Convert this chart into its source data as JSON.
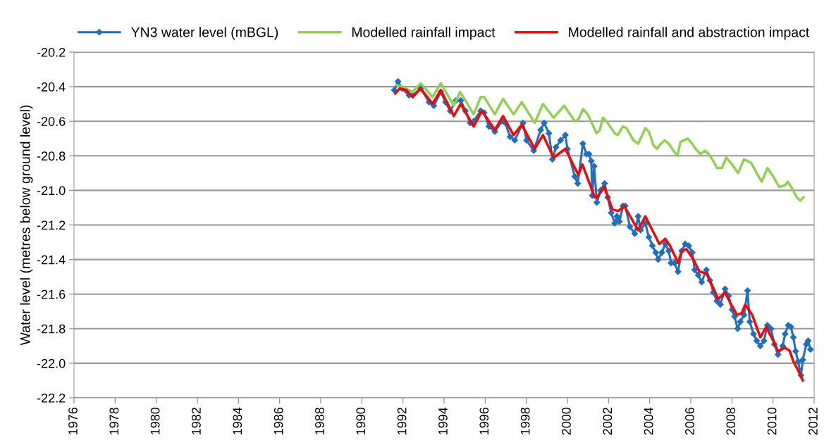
{
  "chart_data": {
    "type": "line",
    "ylabel": "Water level (metres below ground level)",
    "xlim": [
      1976,
      2012
    ],
    "xticks": [
      1976,
      1978,
      1980,
      1982,
      1984,
      1986,
      1988,
      1990,
      1992,
      1994,
      1996,
      1998,
      2000,
      2002,
      2004,
      2006,
      2008,
      2010,
      2012
    ],
    "ylim": [
      -22.2,
      -20.2
    ],
    "yticks": [
      -22.2,
      {
        "value": -22,
        "label": "-22.0"
      },
      -21.8,
      -21.6,
      -21.4,
      -21.2,
      {
        "value": -21,
        "label": "-21.0"
      },
      -20.8,
      -20.6,
      -20.4,
      -20.2
    ],
    "grid": "y",
    "legend": "top",
    "series": [
      {
        "name": "YN3 water level (mBGL)",
        "color": "#1f6fbf",
        "marker": "diamond",
        "x": [
          1991.58,
          1991.76,
          1991.95,
          1992.3,
          1992.47,
          1992.86,
          1993.27,
          1993.5,
          1993.84,
          1994.07,
          1994.3,
          1994.58,
          1994.81,
          1995.04,
          1995.27,
          1995.44,
          1995.78,
          1995.95,
          1996.18,
          1996.47,
          1996.81,
          1996.98,
          1997.21,
          1997.44,
          1997.84,
          1998.01,
          1998.36,
          1998.7,
          1998.87,
          1999.1,
          1999.27,
          1999.44,
          1999.67,
          1999.9,
          2000.0,
          2000.36,
          2000.5,
          2000.75,
          2000.93,
          2001.05,
          2001.16,
          2001.21,
          2001.3,
          2001.43,
          2001.61,
          2001.81,
          2001.96,
          2002.13,
          2002.3,
          2002.41,
          2002.53,
          2002.7,
          2002.81,
          2003.04,
          2003.27,
          2003.44,
          2003.56,
          2003.79,
          2003.96,
          2004.13,
          2004.3,
          2004.41,
          2004.59,
          2004.76,
          2004.93,
          2005.04,
          2005.21,
          2005.38,
          2005.56,
          2005.73,
          2005.9,
          2006.07,
          2006.19,
          2006.36,
          2006.53,
          2006.76,
          2006.93,
          2007.1,
          2007.27,
          2007.44,
          2007.67,
          2007.84,
          2008.01,
          2008.13,
          2008.28,
          2008.41,
          2008.59,
          2008.76,
          2008.87,
          2009.05,
          2009.21,
          2009.38,
          2009.56,
          2009.73,
          2009.9,
          2010.07,
          2010.24,
          2010.47,
          2010.59,
          2010.74,
          2010.87,
          2010.99,
          2011.1,
          2011.22,
          2011.36,
          2011.45,
          2011.62,
          2011.71,
          2011.82
        ],
        "values": [
          -20.42,
          -20.37,
          -20.41,
          -20.45,
          -20.45,
          -20.41,
          -20.49,
          -20.51,
          -20.43,
          -20.49,
          -20.54,
          -20.48,
          -20.48,
          -20.54,
          -20.61,
          -20.6,
          -20.54,
          -20.55,
          -20.63,
          -20.66,
          -20.6,
          -20.61,
          -20.69,
          -20.71,
          -20.61,
          -20.71,
          -20.77,
          -20.65,
          -20.61,
          -20.67,
          -20.82,
          -20.75,
          -20.71,
          -20.68,
          -20.76,
          -20.92,
          -20.96,
          -20.73,
          -20.79,
          -20.79,
          -20.83,
          -21.03,
          -20.86,
          -21.07,
          -21.0,
          -20.96,
          -21.04,
          -21.13,
          -21.19,
          -21.15,
          -21.18,
          -21.09,
          -21.09,
          -21.21,
          -21.25,
          -21.15,
          -21.23,
          -21.19,
          -21.27,
          -21.32,
          -21.36,
          -21.4,
          -21.36,
          -21.31,
          -21.35,
          -21.42,
          -21.42,
          -21.47,
          -21.35,
          -21.31,
          -21.32,
          -21.36,
          -21.46,
          -21.49,
          -21.53,
          -21.46,
          -21.52,
          -21.59,
          -21.64,
          -21.66,
          -21.57,
          -21.61,
          -21.69,
          -21.73,
          -21.8,
          -21.76,
          -21.72,
          -21.58,
          -21.76,
          -21.83,
          -21.87,
          -21.9,
          -21.87,
          -21.78,
          -21.8,
          -21.89,
          -21.95,
          -21.9,
          -21.83,
          -21.78,
          -21.79,
          -21.85,
          -21.93,
          -21.99,
          -22.07,
          -21.98,
          -21.89,
          -21.87,
          -21.92
        ]
      },
      {
        "name": "Modelled rainfall impact",
        "color": "#92d050",
        "marker": "none",
        "x": [
          1991.67,
          1991.95,
          1992.47,
          1992.86,
          1993.44,
          1993.84,
          1994.47,
          1994.78,
          1995.44,
          1995.78,
          1995.95,
          1996.47,
          1996.87,
          1997.38,
          1997.78,
          1998.41,
          1998.81,
          1999.33,
          1999.84,
          2000.36,
          2000.53,
          2000.76,
          2000.99,
          2001.42,
          2001.58,
          2001.73,
          2001.9,
          2002.3,
          2002.45,
          2002.7,
          2002.87,
          2003.21,
          2003.44,
          2003.79,
          2003.96,
          2004.19,
          2004.36,
          2004.47,
          2004.73,
          2004.93,
          2005.16,
          2005.35,
          2005.5,
          2005.67,
          2005.85,
          2006.07,
          2006.24,
          2006.47,
          2006.7,
          2006.87,
          2007.1,
          2007.27,
          2007.52,
          2007.73,
          2008.01,
          2008.3,
          2008.59,
          2008.93,
          2009.21,
          2009.45,
          2009.73,
          2010.01,
          2010.3,
          2010.59,
          2010.72,
          2010.93,
          2011.16,
          2011.33,
          2011.48
        ],
        "values": [
          -20.39,
          -20.4,
          -20.43,
          -20.38,
          -20.46,
          -20.38,
          -20.51,
          -20.43,
          -20.56,
          -20.46,
          -20.46,
          -20.56,
          -20.47,
          -20.56,
          -20.49,
          -20.61,
          -20.5,
          -20.58,
          -20.51,
          -20.6,
          -20.59,
          -20.53,
          -20.56,
          -20.67,
          -20.65,
          -20.58,
          -20.6,
          -20.67,
          -20.68,
          -20.63,
          -20.64,
          -20.71,
          -20.73,
          -20.64,
          -20.66,
          -20.74,
          -20.76,
          -20.74,
          -20.71,
          -20.73,
          -20.77,
          -20.8,
          -20.72,
          -20.71,
          -20.7,
          -20.73,
          -20.76,
          -20.79,
          -20.77,
          -20.79,
          -20.83,
          -20.87,
          -20.87,
          -20.81,
          -20.85,
          -20.9,
          -20.82,
          -20.84,
          -20.9,
          -20.95,
          -20.87,
          -20.92,
          -20.98,
          -20.97,
          -20.95,
          -20.99,
          -21.04,
          -21.06,
          -21.04
        ]
      },
      {
        "name": "Modelled rainfall and abstraction impact",
        "color": "#ff0000",
        "marker": "none",
        "x": [
          1991.63,
          1991.84,
          1992.18,
          1992.47,
          1992.86,
          1993.44,
          1993.84,
          1994.47,
          1994.81,
          1995.44,
          1995.84,
          1996.47,
          1996.87,
          1997.38,
          1997.78,
          1998.41,
          1998.81,
          1999.33,
          1999.9,
          2000.53,
          2000.73,
          2001.33,
          2001.44,
          2001.79,
          2002.19,
          2002.47,
          2002.76,
          2003.44,
          2003.79,
          2004.47,
          2004.76,
          2004.99,
          2005.39,
          2005.56,
          2005.79,
          2006.13,
          2006.42,
          2006.76,
          2007.04,
          2007.33,
          2007.67,
          2007.96,
          2008.25,
          2008.48,
          2008.65,
          2008.99,
          2009.38,
          2009.67,
          2010.01,
          2010.24,
          2010.59,
          2010.82,
          2010.99,
          2011.22,
          2011.45
        ],
        "values": [
          -20.44,
          -20.41,
          -20.42,
          -20.46,
          -20.41,
          -20.5,
          -20.42,
          -20.57,
          -20.5,
          -20.63,
          -20.54,
          -20.65,
          -20.57,
          -20.68,
          -20.62,
          -20.76,
          -20.68,
          -20.81,
          -20.76,
          -20.91,
          -20.85,
          -21.04,
          -21.04,
          -20.98,
          -21.11,
          -21.12,
          -21.09,
          -21.23,
          -21.15,
          -21.31,
          -21.28,
          -21.32,
          -21.42,
          -21.35,
          -21.34,
          -21.4,
          -21.47,
          -21.48,
          -21.55,
          -21.63,
          -21.59,
          -21.66,
          -21.72,
          -21.71,
          -21.66,
          -21.72,
          -21.85,
          -21.79,
          -21.87,
          -21.93,
          -21.91,
          -21.93,
          -21.99,
          -22.04,
          -22.1
        ]
      }
    ]
  }
}
